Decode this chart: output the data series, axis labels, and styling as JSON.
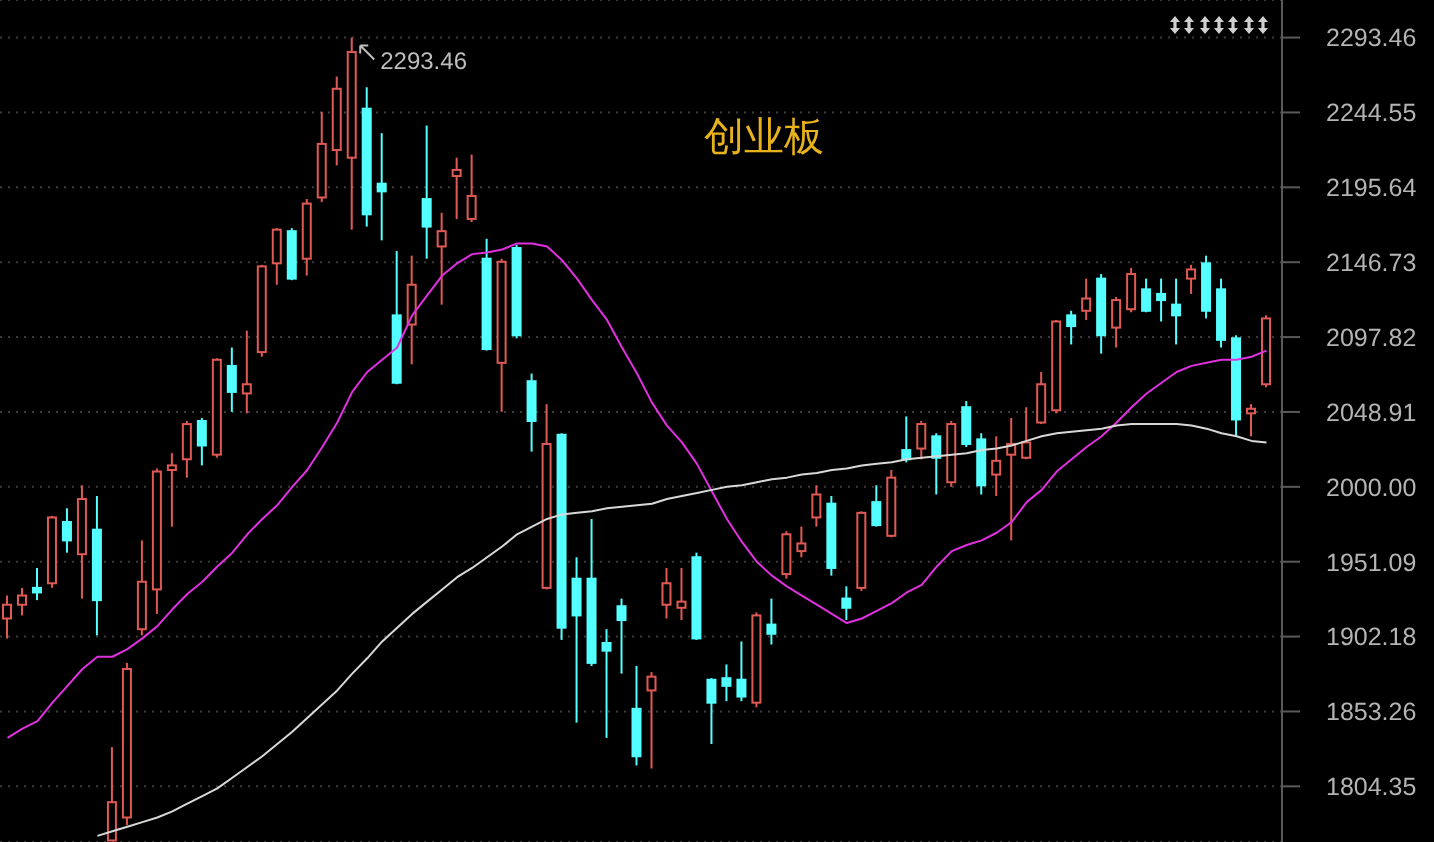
{
  "chart_data": {
    "type": "candlestick",
    "title": "创业板",
    "categories": [
      null,
      null,
      null,
      null,
      null,
      null,
      null,
      null,
      null,
      null,
      null,
      null,
      null,
      null,
      null,
      null,
      null,
      null,
      null,
      null,
      null,
      null,
      null,
      null,
      null,
      null,
      null,
      null,
      null,
      null,
      null,
      null,
      null,
      null,
      null,
      null,
      null,
      null,
      null,
      null,
      null,
      null,
      null,
      null,
      null,
      null,
      null,
      null,
      null,
      null,
      null,
      null,
      null,
      null,
      null,
      null,
      null,
      null,
      null,
      null,
      null,
      null,
      null,
      null,
      null,
      null,
      null,
      null,
      null,
      null,
      null,
      null,
      null,
      null,
      null,
      null,
      null,
      null,
      null,
      null,
      null,
      null,
      null,
      null,
      null
    ],
    "ohlc": [
      [
        1914,
        1929,
        1901,
        1923
      ],
      [
        1923,
        1934,
        1916,
        1929
      ],
      [
        1934,
        1947,
        1926,
        1931
      ],
      [
        1937,
        1981,
        1934,
        1980
      ],
      [
        1977,
        1986,
        1957,
        1965
      ],
      [
        1956,
        2001,
        1927,
        1992
      ],
      [
        1972,
        1994,
        1903,
        1926
      ],
      [
        1769,
        1830,
        1769,
        1794
      ],
      [
        1784,
        1885,
        1779,
        1881
      ],
      [
        1907,
        1965,
        1903,
        1938
      ],
      [
        1933,
        2012,
        1917,
        2010
      ],
      [
        2011,
        2022,
        1974,
        2014
      ],
      [
        2018,
        2043,
        2006,
        2041
      ],
      [
        2043,
        2045,
        2014,
        2027
      ],
      [
        2021,
        2084,
        2019,
        2083
      ],
      [
        2079,
        2091,
        2049,
        2062
      ],
      [
        2061,
        2102,
        2048,
        2067
      ],
      [
        2088,
        2145,
        2085,
        2144
      ],
      [
        2146,
        2169,
        2132,
        2168
      ],
      [
        2167,
        2169,
        2135,
        2136
      ],
      [
        2149,
        2188,
        2138,
        2185
      ],
      [
        2189,
        2245,
        2186,
        2224
      ],
      [
        2220,
        2268,
        2210,
        2260
      ],
      [
        2215,
        2293.46,
        2168,
        2284
      ],
      [
        2247,
        2261,
        2170,
        2178
      ],
      [
        2198,
        2231,
        2161,
        2193
      ],
      [
        2112,
        2154,
        2067,
        2068
      ],
      [
        2106,
        2151,
        2080,
        2132
      ],
      [
        2188,
        2236,
        2149,
        2170
      ],
      [
        2157,
        2179,
        2119,
        2167
      ],
      [
        2203,
        2215,
        2175,
        2207
      ],
      [
        2175,
        2217,
        2173,
        2190
      ],
      [
        2149,
        2162,
        2089,
        2090
      ],
      [
        2081,
        2149,
        2049,
        2147
      ],
      [
        2156,
        2158,
        2097,
        2099
      ],
      [
        2069,
        2074,
        2023,
        2043
      ],
      [
        1934,
        2054,
        1933,
        2028
      ],
      [
        2034,
        2035,
        1900,
        1908
      ],
      [
        1940,
        1954,
        1846,
        1916
      ],
      [
        1940,
        1979,
        1883,
        1885
      ],
      [
        1898,
        1907,
        1836,
        1893
      ],
      [
        1922,
        1927,
        1878,
        1913
      ],
      [
        1855,
        1883,
        1818,
        1824
      ],
      [
        1867,
        1879,
        1816,
        1876
      ],
      [
        1923,
        1947,
        1914,
        1937
      ],
      [
        1921,
        1947,
        1913,
        1925
      ],
      [
        1954,
        1957,
        1900,
        1901
      ],
      [
        1874,
        1875,
        1832,
        1859
      ],
      [
        1875,
        1884,
        1860,
        1870
      ],
      [
        1874,
        1899,
        1860,
        1863
      ],
      [
        1859,
        1918,
        1856,
        1916
      ],
      [
        1910,
        1927,
        1897,
        1904
      ],
      [
        1943,
        1971,
        1940,
        1969
      ],
      [
        1958,
        1974,
        1954,
        1963
      ],
      [
        1980,
        2001,
        1974,
        1995
      ],
      [
        1989,
        1994,
        1942,
        1947
      ],
      [
        1927,
        1935,
        1913,
        1921
      ],
      [
        1934,
        1984,
        1932,
        1983
      ],
      [
        1990,
        2001,
        1974,
        1975
      ],
      [
        1968,
        2011,
        1967,
        2006
      ],
      [
        2024,
        2046,
        2016,
        2018
      ],
      [
        2025,
        2043,
        2018,
        2041
      ],
      [
        2033,
        2035,
        1995,
        2019
      ],
      [
        2003,
        2043,
        2000,
        2041
      ],
      [
        2052,
        2056,
        2026,
        2028
      ],
      [
        2031,
        2035,
        1995,
        2001
      ],
      [
        2008,
        2033,
        1994,
        2017
      ],
      [
        2021,
        2045,
        1965,
        2028
      ],
      [
        2019,
        2052,
        2018,
        2029
      ],
      [
        2042,
        2075,
        2041,
        2067
      ],
      [
        2050,
        2109,
        2048,
        2108
      ],
      [
        2112,
        2115,
        2093,
        2105
      ],
      [
        2115,
        2136,
        2109,
        2123
      ],
      [
        2136,
        2139,
        2087,
        2099
      ],
      [
        2104,
        2124,
        2091,
        2122
      ],
      [
        2116,
        2143,
        2114,
        2139
      ],
      [
        2129,
        2136,
        2114,
        2115
      ],
      [
        2126,
        2136,
        2108,
        2122
      ],
      [
        2119,
        2136,
        2093,
        2112
      ],
      [
        2136,
        2145,
        2126,
        2142
      ],
      [
        2146,
        2151,
        2110,
        2115
      ],
      [
        2129,
        2136,
        2091,
        2096
      ],
      [
        2097,
        2099,
        2033,
        2044
      ],
      [
        2048,
        2054,
        2033,
        2051
      ],
      [
        2067,
        2112,
        2065,
        2110
      ]
    ],
    "colors": [
      "#e05a55",
      "#e05a55",
      "#54ffff",
      "#e05a55",
      "#54ffff",
      "#e05a55",
      "#54ffff",
      "#e05a55",
      "#e05a55",
      "#e05a55",
      "#e05a55",
      "#e05a55",
      "#e05a55",
      "#54ffff",
      "#e05a55",
      "#54ffff",
      "#e05a55",
      "#e05a55",
      "#e05a55",
      "#54ffff",
      "#e05a55",
      "#e05a55",
      "#e05a55",
      "#e05a55",
      "#54ffff",
      "#54ffff",
      "#54ffff",
      "#e05a55",
      "#54ffff",
      "#e05a55",
      "#e05a55",
      "#e05a55",
      "#54ffff",
      "#e05a55",
      "#54ffff",
      "#54ffff",
      "#e05a55",
      "#54ffff",
      "#54ffff",
      "#54ffff",
      "#54ffff",
      "#54ffff",
      "#54ffff",
      "#e05a55",
      "#e05a55",
      "#e05a55",
      "#54ffff",
      "#54ffff",
      "#54ffff",
      "#54ffff",
      "#e05a55",
      "#54ffff",
      "#e05a55",
      "#e05a55",
      "#e05a55",
      "#54ffff",
      "#54ffff",
      "#e05a55",
      "#54ffff",
      "#e05a55",
      "#54ffff",
      "#e05a55",
      "#54ffff",
      "#e05a55",
      "#54ffff",
      "#54ffff",
      "#e05a55",
      "#e05a55",
      "#e05a55",
      "#e05a55",
      "#e05a55",
      "#54ffff",
      "#e05a55",
      "#54ffff",
      "#e05a55",
      "#e05a55",
      "#54ffff",
      "#54ffff",
      "#54ffff",
      "#e05a55",
      "#54ffff",
      "#54ffff",
      "#54ffff",
      "#e05a55",
      "#e05a55"
    ],
    "series": [
      {
        "type": "line",
        "color": "#e030e0",
        "values": [
          1836,
          1842,
          1847,
          1859,
          1870,
          1881,
          1889,
          1889,
          1894,
          1901,
          1909,
          1920,
          1930,
          1938,
          1948,
          1957,
          1969,
          1979,
          1988,
          2000,
          2011,
          2026,
          2042,
          2062,
          2075,
          2083,
          2091,
          2112,
          2125,
          2138,
          2146,
          2152,
          2153,
          2155,
          2159,
          2159,
          2157,
          2148,
          2136,
          2122,
          2109,
          2091,
          2074,
          2055,
          2040,
          2029,
          2015,
          1997,
          1979,
          1964,
          1951,
          1942,
          1935,
          1929,
          1923,
          1917,
          1911,
          1914,
          1919,
          1924,
          1931,
          1936,
          1948,
          1958,
          1962,
          1965,
          1970,
          1977,
          1990,
          1998,
          2010,
          2018,
          2026,
          2033,
          2042,
          2052,
          2061,
          2068,
          2075,
          2079,
          2081,
          2083,
          2083,
          2085,
          2089
        ]
      },
      {
        "type": "line",
        "color": "#d8d8d8",
        "values": [
          null,
          null,
          null,
          null,
          null,
          null,
          1772,
          1775,
          1778,
          1781,
          1784,
          1788,
          1793,
          1798,
          1803,
          1810,
          1817,
          1824,
          1832,
          1840,
          1849,
          1858,
          1867,
          1878,
          1888,
          1899,
          1908,
          1917,
          1925,
          1933,
          1941,
          1947,
          1954,
          1961,
          1969,
          1974,
          1979,
          1982,
          1983,
          1984,
          1986,
          1987,
          1988,
          1989,
          1992,
          1994,
          1996,
          1998,
          2000,
          2001,
          2003,
          2005,
          2006,
          2008,
          2009,
          2011,
          2012,
          2014,
          2015,
          2016,
          2018,
          2019,
          2020,
          2021,
          2022,
          2024,
          2025,
          2027,
          2030,
          2033,
          2035,
          2036,
          2037,
          2038,
          2040,
          2041,
          2041,
          2041,
          2041,
          2040,
          2038,
          2035,
          2033,
          2030,
          2029
        ]
      }
    ],
    "ylim": [
      1768,
      2318
    ],
    "yticks": [
      1804.35,
      1853.26,
      1902.18,
      1951.09,
      {
        "value": 2000,
        "label": "2000.00"
      },
      2048.91,
      2097.82,
      2146.73,
      2195.64,
      2244.55,
      2293.46
    ],
    "grid": "y",
    "tick_labels": "y",
    "annotations": [
      "2293.46"
    ]
  }
}
